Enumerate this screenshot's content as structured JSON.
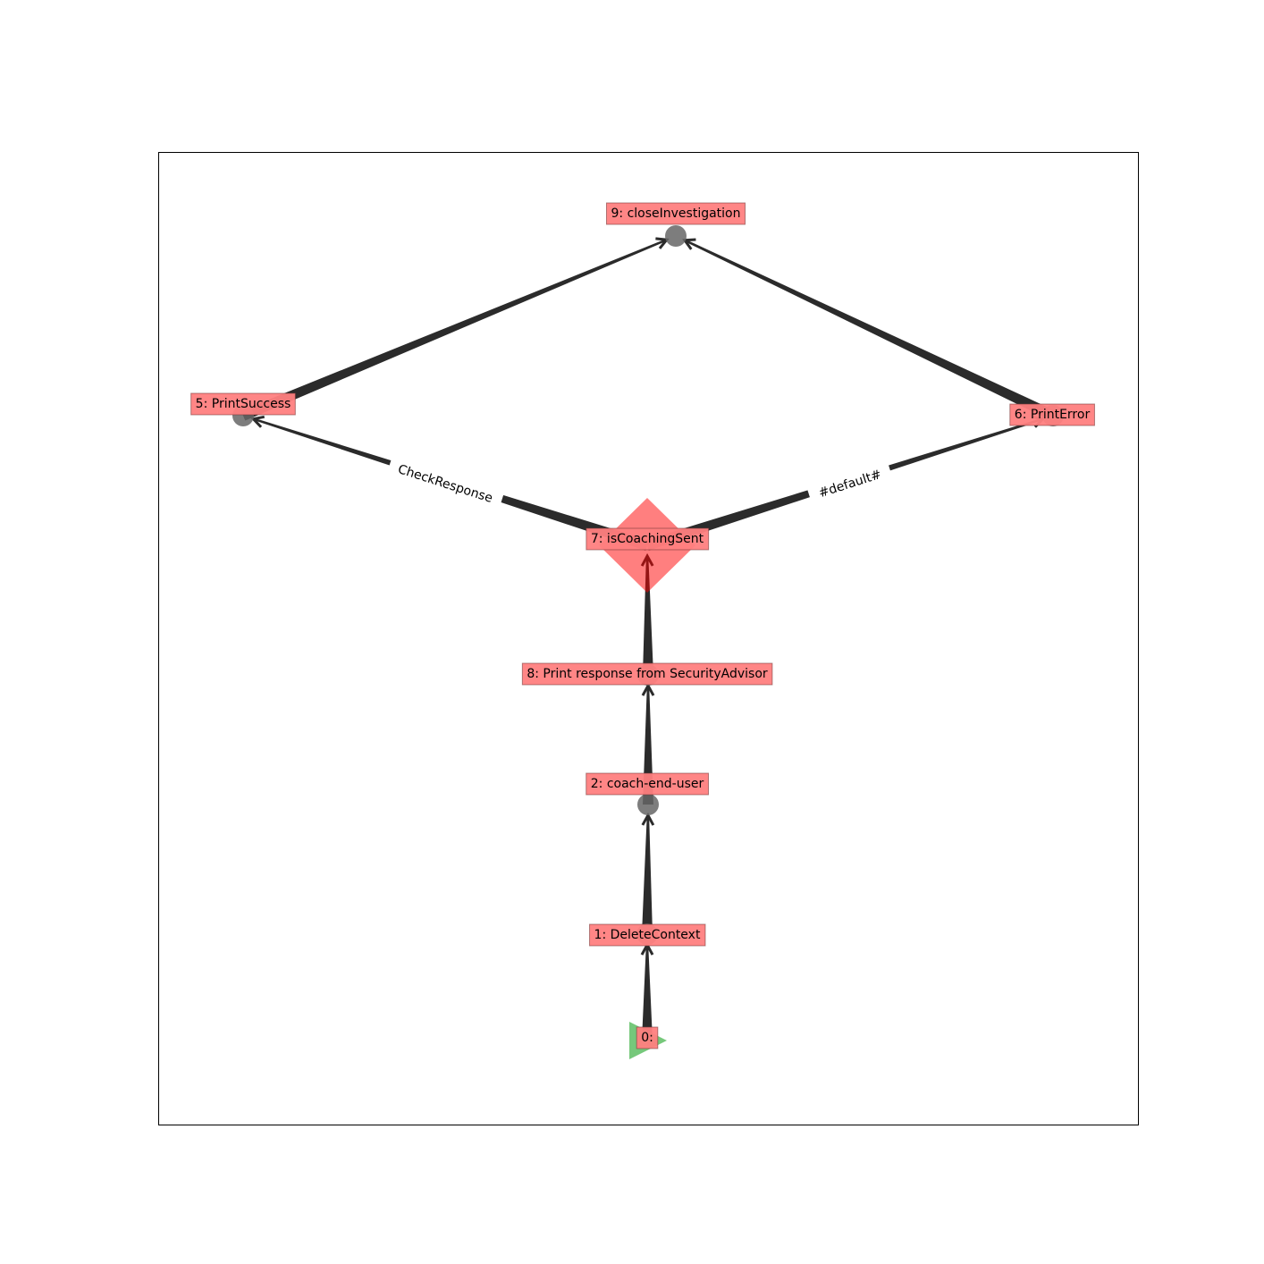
{
  "graph": {
    "node_fill": "#ff0000",
    "label_box_fill": "#ff7f7f",
    "edge_color": "#2b2b2b",
    "start_marker_color": "#3cb043",
    "node_marker_color": "#666666",
    "nodes": [
      {
        "id": "0",
        "label": "0:",
        "shape": "start-triangle"
      },
      {
        "id": "1",
        "label": "1: DeleteContext",
        "shape": "circle"
      },
      {
        "id": "2",
        "label": "2: coach-end-user",
        "shape": "circle"
      },
      {
        "id": "8",
        "label": "8: Print response from SecurityAdvisor",
        "shape": "circle"
      },
      {
        "id": "7",
        "label": "7: isCoachingSent",
        "shape": "diamond"
      },
      {
        "id": "5",
        "label": "5: PrintSuccess",
        "shape": "circle"
      },
      {
        "id": "6",
        "label": "6: PrintError",
        "shape": "circle"
      },
      {
        "id": "9",
        "label": "9: closeInvestigation",
        "shape": "circle"
      }
    ],
    "edges": [
      {
        "from": "0",
        "to": "1",
        "label": ""
      },
      {
        "from": "1",
        "to": "2",
        "label": ""
      },
      {
        "from": "2",
        "to": "8",
        "label": ""
      },
      {
        "from": "8",
        "to": "7",
        "label": ""
      },
      {
        "from": "7",
        "to": "5",
        "label": "CheckResponse"
      },
      {
        "from": "7",
        "to": "6",
        "label": "#default#"
      },
      {
        "from": "5",
        "to": "9",
        "label": ""
      },
      {
        "from": "6",
        "to": "9",
        "label": ""
      }
    ]
  }
}
